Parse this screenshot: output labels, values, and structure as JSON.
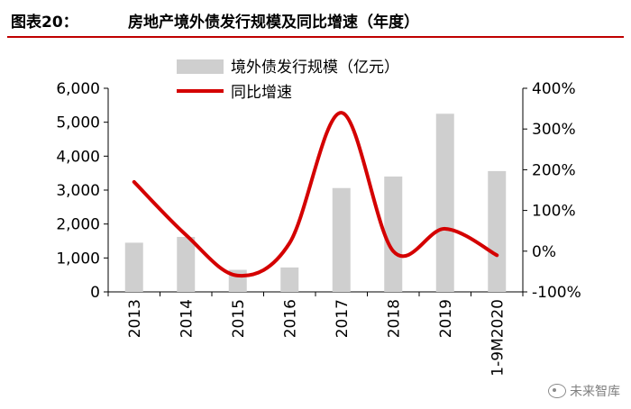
{
  "header": {
    "label": "图表20：",
    "title": "房地产境外债发行规模及同比增速（年度）"
  },
  "watermark": "未来智库",
  "colors": {
    "bar": "#cfcfcf",
    "line": "#d40000",
    "header_rule": "#c00000"
  },
  "chart_data": {
    "type": "bar",
    "categories": [
      "2013",
      "2014",
      "2015",
      "2016",
      "2017",
      "2018",
      "2019",
      "1-9M2020"
    ],
    "series": [
      {
        "name": "境外债发行规模（亿元）",
        "type": "bar",
        "axis": "left",
        "values": [
          1450,
          1620,
          650,
          720,
          3060,
          3400,
          5250,
          3560
        ]
      },
      {
        "name": "同比增速",
        "type": "line",
        "axis": "right",
        "smooth": true,
        "values": [
          170,
          40,
          -60,
          20,
          340,
          0,
          55,
          -10
        ]
      }
    ],
    "y_left": {
      "ylim": [
        0,
        6000
      ],
      "ticks": [
        0,
        1000,
        2000,
        3000,
        4000,
        5000,
        6000
      ],
      "tick_labels": [
        "0",
        "1,000",
        "2,000",
        "3,000",
        "4,000",
        "5,000",
        "6,000"
      ]
    },
    "y_right": {
      "ylim": [
        -100,
        400
      ],
      "ticks": [
        -100,
        0,
        100,
        200,
        300,
        400
      ],
      "tick_labels": [
        "-100%",
        "0%",
        "100%",
        "200%",
        "300%",
        "400%"
      ]
    },
    "legend": "top-center",
    "grid": false
  }
}
